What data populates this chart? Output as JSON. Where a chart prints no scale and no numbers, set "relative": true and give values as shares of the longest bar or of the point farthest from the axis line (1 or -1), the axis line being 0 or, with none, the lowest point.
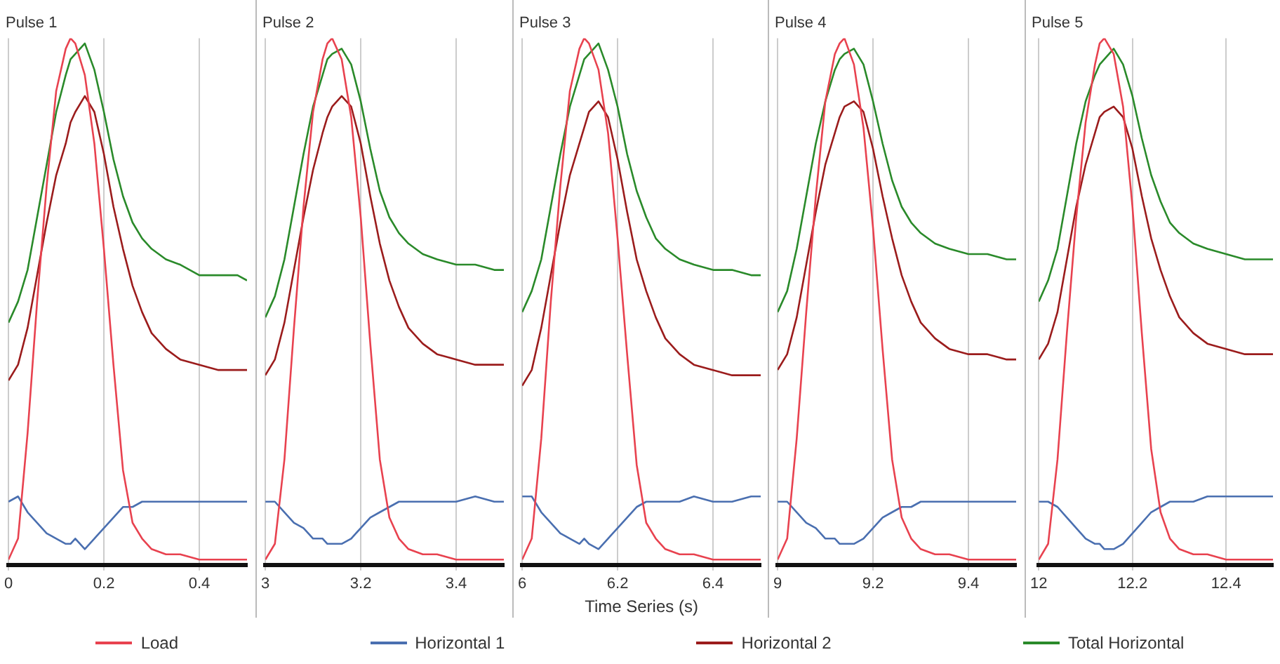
{
  "chart_data": [
    {
      "type": "line",
      "title": "Pulse 1",
      "relative": true,
      "grid": "x",
      "xlim": [
        0,
        0.5
      ],
      "xticks": [
        0,
        0.2,
        0.4
      ],
      "x": [
        0,
        0.02,
        0.04,
        0.06,
        0.08,
        0.1,
        0.12,
        0.13,
        0.14,
        0.16,
        0.18,
        0.2,
        0.22,
        0.24,
        0.26,
        0.28,
        0.3,
        0.33,
        0.36,
        0.4,
        0.44,
        0.48,
        0.5
      ],
      "series": [
        {
          "color": "#e8424f",
          "values": [
            0.01,
            0.05,
            0.25,
            0.5,
            0.72,
            0.9,
            0.98,
            1,
            0.99,
            0.93,
            0.8,
            0.6,
            0.38,
            0.18,
            0.08,
            0.05,
            0.03,
            0.02,
            0.02,
            0.01,
            0.01,
            0.01,
            0.01
          ]
        },
        {
          "color": "#4a6fb0",
          "values": [
            0.12,
            0.13,
            0.1,
            0.08,
            0.06,
            0.05,
            0.04,
            0.04,
            0.05,
            0.03,
            0.05,
            0.07,
            0.09,
            0.11,
            0.11,
            0.12,
            0.12,
            0.12,
            0.12,
            0.12,
            0.12,
            0.12,
            0.12
          ]
        },
        {
          "color": "#9b1c1c",
          "values": [
            0.35,
            0.38,
            0.45,
            0.55,
            0.65,
            0.74,
            0.8,
            0.84,
            0.86,
            0.89,
            0.86,
            0.78,
            0.68,
            0.6,
            0.53,
            0.48,
            0.44,
            0.41,
            0.39,
            0.38,
            0.37,
            0.37,
            0.37
          ]
        },
        {
          "color": "#2a8a2a",
          "values": [
            0.46,
            0.5,
            0.56,
            0.66,
            0.76,
            0.86,
            0.93,
            0.96,
            0.97,
            0.99,
            0.94,
            0.86,
            0.77,
            0.7,
            0.65,
            0.62,
            0.6,
            0.58,
            0.57,
            0.55,
            0.55,
            0.55,
            0.54
          ]
        }
      ]
    },
    {
      "type": "line",
      "title": "Pulse 2",
      "relative": true,
      "grid": "x",
      "xlim": [
        3,
        3.5
      ],
      "xticks": [
        3,
        3.2,
        3.4
      ],
      "x": [
        3,
        3.02,
        3.04,
        3.06,
        3.08,
        3.1,
        3.12,
        3.13,
        3.14,
        3.16,
        3.18,
        3.2,
        3.22,
        3.24,
        3.26,
        3.28,
        3.3,
        3.33,
        3.36,
        3.4,
        3.44,
        3.48,
        3.5
      ],
      "series": [
        {
          "color": "#e8424f",
          "values": [
            0.01,
            0.04,
            0.2,
            0.45,
            0.68,
            0.86,
            0.96,
            0.99,
            1,
            0.96,
            0.85,
            0.66,
            0.42,
            0.2,
            0.09,
            0.05,
            0.03,
            0.02,
            0.02,
            0.01,
            0.01,
            0.01,
            0.01
          ]
        },
        {
          "color": "#4a6fb0",
          "values": [
            0.12,
            0.12,
            0.1,
            0.08,
            0.07,
            0.05,
            0.05,
            0.04,
            0.04,
            0.04,
            0.05,
            0.07,
            0.09,
            0.1,
            0.11,
            0.12,
            0.12,
            0.12,
            0.12,
            0.12,
            0.13,
            0.12,
            0.12
          ]
        },
        {
          "color": "#9b1c1c",
          "values": [
            0.36,
            0.39,
            0.46,
            0.56,
            0.66,
            0.75,
            0.82,
            0.85,
            0.87,
            0.89,
            0.87,
            0.8,
            0.7,
            0.61,
            0.54,
            0.49,
            0.45,
            0.42,
            0.4,
            0.39,
            0.38,
            0.38,
            0.38
          ]
        },
        {
          "color": "#2a8a2a",
          "values": [
            0.47,
            0.51,
            0.58,
            0.68,
            0.78,
            0.87,
            0.93,
            0.96,
            0.97,
            0.98,
            0.95,
            0.88,
            0.79,
            0.71,
            0.66,
            0.63,
            0.61,
            0.59,
            0.58,
            0.57,
            0.57,
            0.56,
            0.56
          ]
        }
      ]
    },
    {
      "type": "line",
      "title": "Pulse 3",
      "xlabel": "Time Series (s)",
      "legend": "bottom",
      "relative": true,
      "grid": "x",
      "xlim": [
        6,
        6.5
      ],
      "xticks": [
        6,
        6.2,
        6.4
      ],
      "x": [
        6,
        6.02,
        6.04,
        6.06,
        6.08,
        6.1,
        6.12,
        6.13,
        6.14,
        6.16,
        6.18,
        6.2,
        6.22,
        6.24,
        6.26,
        6.28,
        6.3,
        6.33,
        6.36,
        6.4,
        6.44,
        6.48,
        6.5
      ],
      "series": [
        {
          "name": "Load",
          "color": "#e8424f",
          "values": [
            0.01,
            0.05,
            0.24,
            0.5,
            0.72,
            0.9,
            0.98,
            1,
            0.99,
            0.94,
            0.82,
            0.62,
            0.4,
            0.19,
            0.08,
            0.05,
            0.03,
            0.02,
            0.02,
            0.01,
            0.01,
            0.01,
            0.01
          ]
        },
        {
          "name": "Horizontal 1",
          "color": "#4a6fb0",
          "values": [
            0.13,
            0.13,
            0.1,
            0.08,
            0.06,
            0.05,
            0.04,
            0.05,
            0.04,
            0.03,
            0.05,
            0.07,
            0.09,
            0.11,
            0.12,
            0.12,
            0.12,
            0.12,
            0.13,
            0.12,
            0.12,
            0.13,
            0.13
          ]
        },
        {
          "name": "Horizontal 2",
          "color": "#9b1c1c",
          "values": [
            0.34,
            0.37,
            0.45,
            0.55,
            0.65,
            0.74,
            0.8,
            0.83,
            0.86,
            0.88,
            0.85,
            0.77,
            0.67,
            0.58,
            0.52,
            0.47,
            0.43,
            0.4,
            0.38,
            0.37,
            0.36,
            0.36,
            0.36
          ]
        },
        {
          "name": "Total Horizontal",
          "color": "#2a8a2a",
          "values": [
            0.48,
            0.52,
            0.58,
            0.68,
            0.78,
            0.87,
            0.93,
            0.96,
            0.97,
            0.99,
            0.94,
            0.87,
            0.78,
            0.71,
            0.66,
            0.62,
            0.6,
            0.58,
            0.57,
            0.56,
            0.56,
            0.55,
            0.55
          ]
        }
      ]
    },
    {
      "type": "line",
      "title": "Pulse 4",
      "relative": true,
      "grid": "x",
      "xlim": [
        9,
        9.5
      ],
      "xticks": [
        9,
        9.2,
        9.4
      ],
      "x": [
        9,
        9.02,
        9.04,
        9.06,
        9.08,
        9.1,
        9.12,
        9.13,
        9.14,
        9.16,
        9.18,
        9.2,
        9.22,
        9.24,
        9.26,
        9.28,
        9.3,
        9.33,
        9.36,
        9.4,
        9.44,
        9.48,
        9.5
      ],
      "series": [
        {
          "color": "#e8424f",
          "values": [
            0.01,
            0.05,
            0.24,
            0.48,
            0.7,
            0.88,
            0.97,
            0.99,
            1,
            0.95,
            0.83,
            0.64,
            0.41,
            0.2,
            0.09,
            0.05,
            0.03,
            0.02,
            0.02,
            0.01,
            0.01,
            0.01,
            0.01
          ]
        },
        {
          "color": "#4a6fb0",
          "values": [
            0.12,
            0.12,
            0.1,
            0.08,
            0.07,
            0.05,
            0.05,
            0.04,
            0.04,
            0.04,
            0.05,
            0.07,
            0.09,
            0.1,
            0.11,
            0.11,
            0.12,
            0.12,
            0.12,
            0.12,
            0.12,
            0.12,
            0.12
          ]
        },
        {
          "color": "#9b1c1c",
          "values": [
            0.37,
            0.4,
            0.47,
            0.57,
            0.67,
            0.76,
            0.82,
            0.85,
            0.87,
            0.88,
            0.86,
            0.79,
            0.7,
            0.62,
            0.55,
            0.5,
            0.46,
            0.43,
            0.41,
            0.4,
            0.4,
            0.39,
            0.39
          ]
        },
        {
          "color": "#2a8a2a",
          "values": [
            0.48,
            0.52,
            0.6,
            0.7,
            0.8,
            0.88,
            0.94,
            0.96,
            0.97,
            0.98,
            0.95,
            0.88,
            0.8,
            0.73,
            0.68,
            0.65,
            0.63,
            0.61,
            0.6,
            0.59,
            0.59,
            0.58,
            0.58
          ]
        }
      ]
    },
    {
      "type": "line",
      "title": "Pulse 5",
      "relative": true,
      "grid": "x",
      "xlim": [
        12,
        12.5
      ],
      "xticks": [
        12,
        12.2,
        12.4
      ],
      "x": [
        12,
        12.02,
        12.04,
        12.06,
        12.08,
        12.1,
        12.12,
        12.13,
        12.14,
        12.16,
        12.18,
        12.2,
        12.22,
        12.24,
        12.26,
        12.28,
        12.3,
        12.33,
        12.36,
        12.4,
        12.44,
        12.48,
        12.5
      ],
      "series": [
        {
          "color": "#e8424f",
          "values": [
            0.01,
            0.04,
            0.2,
            0.44,
            0.66,
            0.84,
            0.95,
            0.99,
            1,
            0.97,
            0.87,
            0.68,
            0.44,
            0.22,
            0.1,
            0.05,
            0.03,
            0.02,
            0.02,
            0.01,
            0.01,
            0.01,
            0.01
          ]
        },
        {
          "color": "#4a6fb0",
          "values": [
            0.12,
            0.12,
            0.11,
            0.09,
            0.07,
            0.05,
            0.04,
            0.04,
            0.03,
            0.03,
            0.04,
            0.06,
            0.08,
            0.1,
            0.11,
            0.12,
            0.12,
            0.12,
            0.13,
            0.13,
            0.13,
            0.13,
            0.13
          ]
        },
        {
          "color": "#9b1c1c",
          "values": [
            0.39,
            0.42,
            0.48,
            0.58,
            0.68,
            0.76,
            0.82,
            0.85,
            0.86,
            0.87,
            0.85,
            0.79,
            0.7,
            0.62,
            0.56,
            0.51,
            0.47,
            0.44,
            0.42,
            0.41,
            0.4,
            0.4,
            0.4
          ]
        },
        {
          "color": "#2a8a2a",
          "values": [
            0.5,
            0.54,
            0.6,
            0.7,
            0.8,
            0.88,
            0.93,
            0.95,
            0.96,
            0.98,
            0.95,
            0.89,
            0.81,
            0.74,
            0.69,
            0.65,
            0.63,
            0.61,
            0.6,
            0.59,
            0.58,
            0.58,
            0.58
          ]
        }
      ]
    }
  ]
}
